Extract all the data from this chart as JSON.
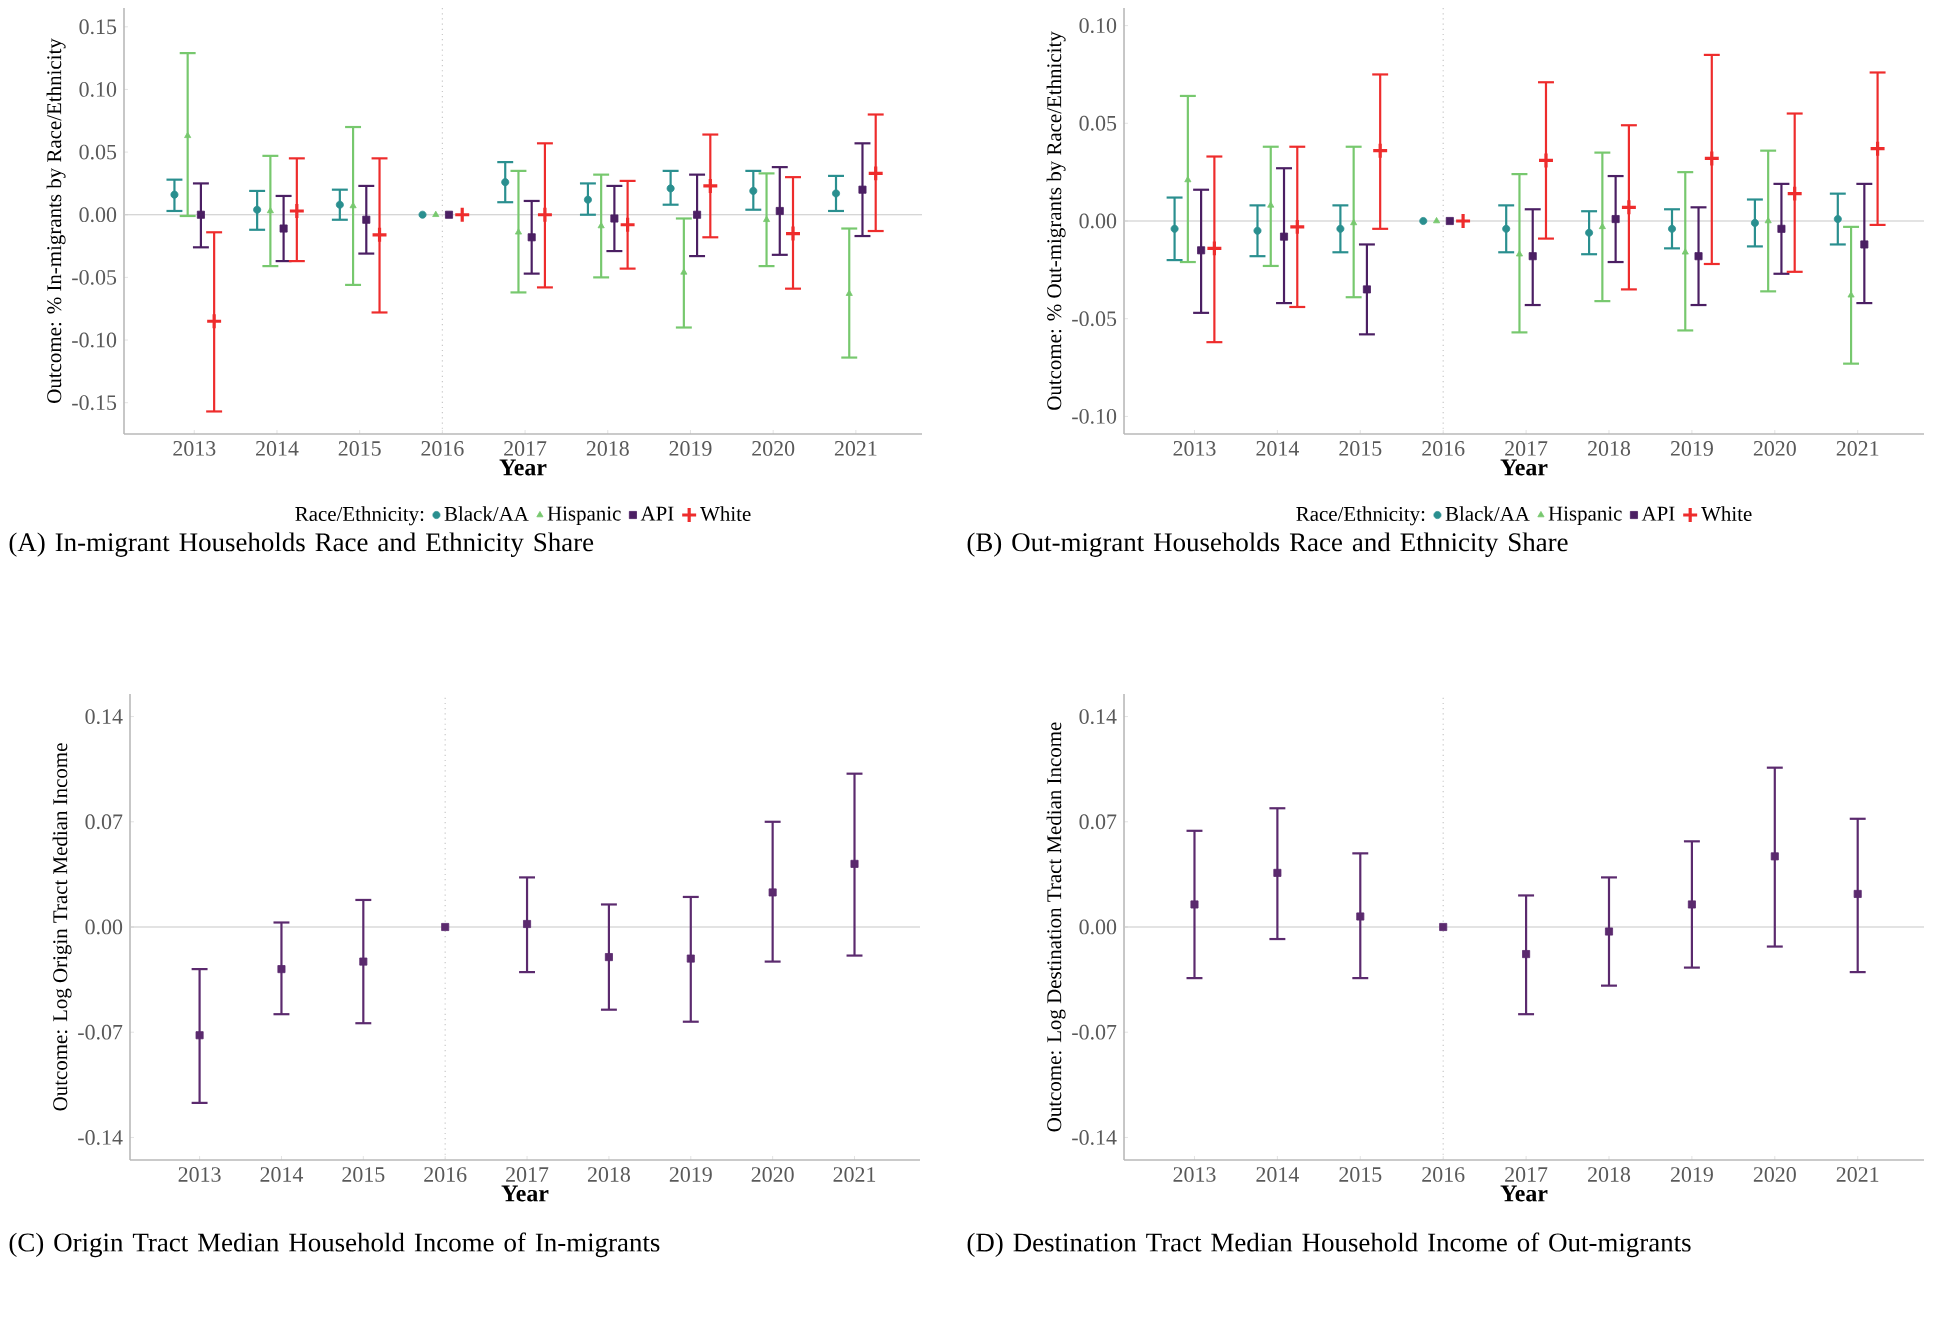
{
  "chart_data": [
    {
      "type": "scatter",
      "categories": [
        "2013",
        "2014",
        "2015",
        "2016",
        "2017",
        "2018",
        "2019",
        "2020",
        "2021"
      ],
      "xlabel": "Year",
      "ylabel": "Outcome: % In-migrants by Race/Ethnicity",
      "ylim": [
        -0.175,
        0.165
      ],
      "yticks": [
        {
          "value": -0.15,
          "label": "-0.15"
        },
        {
          "value": -0.1,
          "label": "-0.10"
        },
        {
          "value": -0.05,
          "label": "-0.05"
        },
        {
          "value": 0,
          "label": "0.00"
        },
        {
          "value": 0.05,
          "label": "0.05"
        },
        {
          "value": 0.1,
          "label": "0.10"
        },
        {
          "value": 0.15,
          "label": "0.15"
        }
      ],
      "legend": "bottom",
      "legend_title": "Race/Ethnicity:",
      "ref_lines": [
        {
          "axis": "y",
          "value": 0,
          "color": "#c8c8c8",
          "line_style": "solid"
        },
        {
          "axis": "x",
          "value": "2016",
          "color": "#c8c8c8",
          "line_style": "dotted"
        }
      ],
      "series": [
        {
          "name": "Black/AA",
          "color": "#2a8f8f",
          "marker": "circle",
          "values": [
            0.016,
            0.004,
            0.008,
            0,
            0.026,
            0.012,
            0.021,
            0.019,
            0.017
          ],
          "errors": [
            [
              0.003,
              0.028
            ],
            [
              -0.012,
              0.019
            ],
            [
              -0.004,
              0.02
            ],
            null,
            [
              0.01,
              0.042
            ],
            [
              0.0,
              0.025
            ],
            [
              0.008,
              0.035
            ],
            [
              0.004,
              0.035
            ],
            [
              0.003,
              0.031
            ]
          ]
        },
        {
          "name": "Hispanic",
          "color": "#77c86e",
          "marker": "triangle",
          "values": [
            0.063,
            0.003,
            0.007,
            0,
            -0.014,
            -0.009,
            -0.046,
            -0.004,
            -0.063
          ],
          "errors": [
            [
              -0.001,
              0.129
            ],
            [
              -0.041,
              0.047
            ],
            [
              -0.056,
              0.07
            ],
            null,
            [
              -0.062,
              0.035
            ],
            [
              -0.05,
              0.032
            ],
            [
              -0.09,
              -0.003
            ],
            [
              -0.041,
              0.033
            ],
            [
              -0.114,
              -0.011
            ]
          ]
        },
        {
          "name": "API",
          "color": "#4b1f63",
          "marker": "square",
          "values": [
            0,
            -0.011,
            -0.004,
            0,
            -0.018,
            -0.003,
            0,
            0.003,
            0.02
          ],
          "errors": [
            [
              -0.026,
              0.025
            ],
            [
              -0.037,
              0.015
            ],
            [
              -0.031,
              0.023
            ],
            null,
            [
              -0.047,
              0.011
            ],
            [
              -0.029,
              0.023
            ],
            [
              -0.033,
              0.032
            ],
            [
              -0.032,
              0.038
            ],
            [
              -0.017,
              0.057
            ]
          ]
        },
        {
          "name": "White",
          "color": "#ee2c2c",
          "marker": "cross",
          "values": [
            -0.085,
            0.003,
            -0.016,
            0,
            0,
            -0.008,
            0.023,
            -0.015,
            0.033
          ],
          "errors": [
            [
              -0.157,
              -0.014
            ],
            [
              -0.037,
              0.045
            ],
            [
              -0.078,
              0.045
            ],
            null,
            [
              -0.058,
              0.057
            ],
            [
              -0.043,
              0.027
            ],
            [
              -0.018,
              0.064
            ],
            [
              -0.059,
              0.03
            ],
            [
              -0.013,
              0.08
            ]
          ]
        }
      ],
      "annotations": [
        "(A) In-migrant Households Race and Ethnicity Share"
      ]
    },
    {
      "type": "scatter",
      "categories": [
        "2013",
        "2014",
        "2015",
        "2016",
        "2017",
        "2018",
        "2019",
        "2020",
        "2021"
      ],
      "xlabel": "Year",
      "ylabel": "Outcome: % Out-migrants by Race/Ethnicity",
      "ylim": [
        -0.109,
        0.109
      ],
      "yticks": [
        {
          "value": -0.1,
          "label": "-0.10"
        },
        {
          "value": -0.05,
          "label": "-0.05"
        },
        {
          "value": 0,
          "label": "0.00"
        },
        {
          "value": 0.05,
          "label": "0.05"
        },
        {
          "value": 0.1,
          "label": "0.10"
        }
      ],
      "legend": "bottom",
      "legend_title": "Race/Ethnicity:",
      "ref_lines": [
        {
          "axis": "y",
          "value": 0,
          "color": "#c8c8c8",
          "line_style": "solid"
        },
        {
          "axis": "x",
          "value": "2016",
          "color": "#c8c8c8",
          "line_style": "dotted"
        }
      ],
      "series": [
        {
          "name": "Black/AA",
          "color": "#2a8f8f",
          "marker": "circle",
          "values": [
            -0.004,
            -0.005,
            -0.004,
            0,
            -0.004,
            -0.006,
            -0.004,
            -0.001,
            0.001
          ],
          "errors": [
            [
              -0.02,
              0.012
            ],
            [
              -0.018,
              0.008
            ],
            [
              -0.016,
              0.008
            ],
            null,
            [
              -0.016,
              0.008
            ],
            [
              -0.017,
              0.005
            ],
            [
              -0.014,
              0.006
            ],
            [
              -0.013,
              0.011
            ],
            [
              -0.012,
              0.014
            ]
          ]
        },
        {
          "name": "Hispanic",
          "color": "#77c86e",
          "marker": "triangle",
          "values": [
            0.021,
            0.008,
            -0.001,
            0,
            -0.017,
            -0.003,
            -0.016,
            0,
            -0.038
          ],
          "errors": [
            [
              -0.021,
              0.064
            ],
            [
              -0.023,
              0.038
            ],
            [
              -0.039,
              0.038
            ],
            null,
            [
              -0.057,
              0.024
            ],
            [
              -0.041,
              0.035
            ],
            [
              -0.056,
              0.025
            ],
            [
              -0.036,
              0.036
            ],
            [
              -0.073,
              -0.003
            ]
          ]
        },
        {
          "name": "API",
          "color": "#4b1f63",
          "marker": "square",
          "values": [
            -0.015,
            -0.008,
            -0.035,
            0,
            -0.018,
            0.001,
            -0.018,
            -0.004,
            -0.012
          ],
          "errors": [
            [
              -0.047,
              0.016
            ],
            [
              -0.042,
              0.027
            ],
            [
              -0.058,
              -0.012
            ],
            null,
            [
              -0.043,
              0.006
            ],
            [
              -0.021,
              0.023
            ],
            [
              -0.043,
              0.007
            ],
            [
              -0.027,
              0.019
            ],
            [
              -0.042,
              0.019
            ]
          ]
        },
        {
          "name": "White",
          "color": "#ee2c2c",
          "marker": "cross",
          "values": [
            -0.014,
            -0.003,
            0.036,
            0,
            0.031,
            0.007,
            0.032,
            0.014,
            0.037
          ],
          "errors": [
            [
              -0.062,
              0.033
            ],
            [
              -0.044,
              0.038
            ],
            [
              -0.004,
              0.075
            ],
            null,
            [
              -0.009,
              0.071
            ],
            [
              -0.035,
              0.049
            ],
            [
              -0.022,
              0.085
            ],
            [
              -0.026,
              0.055
            ],
            [
              -0.002,
              0.076
            ]
          ]
        }
      ],
      "annotations": [
        "(B) Out-migrant Households Race and Ethnicity Share"
      ]
    },
    {
      "type": "scatter",
      "categories": [
        "2013",
        "2014",
        "2015",
        "2016",
        "2017",
        "2018",
        "2019",
        "2020",
        "2021"
      ],
      "xlabel": "Year",
      "ylabel": "Outcome: Log Origin Tract Median Income",
      "ylim": [
        -0.155,
        0.155
      ],
      "yticks": [
        {
          "value": -0.14,
          "label": "-0.14"
        },
        {
          "value": -0.07,
          "label": "-0.07"
        },
        {
          "value": 0,
          "label": "0.00"
        },
        {
          "value": 0.07,
          "label": "0.07"
        },
        {
          "value": 0.14,
          "label": "0.14"
        }
      ],
      "ref_lines": [
        {
          "axis": "y",
          "value": 0,
          "color": "#c8c8c8",
          "line_style": "solid"
        },
        {
          "axis": "x",
          "value": "2016",
          "color": "#c8c8c8",
          "line_style": "dotted"
        }
      ],
      "series": [
        {
          "color": "#5b2a6e",
          "marker": "square",
          "values": [
            -0.072,
            -0.028,
            -0.023,
            0,
            0.002,
            -0.02,
            -0.021,
            0.023,
            0.042
          ],
          "errors": [
            [
              -0.117,
              -0.028
            ],
            [
              -0.058,
              0.003
            ],
            [
              -0.064,
              0.018
            ],
            null,
            [
              -0.03,
              0.033
            ],
            [
              -0.055,
              0.015
            ],
            [
              -0.063,
              0.02
            ],
            [
              -0.023,
              0.07
            ],
            [
              -0.019,
              0.102
            ]
          ]
        }
      ],
      "annotations": [
        "(C) Origin Tract Median Household Income of In-migrants"
      ]
    },
    {
      "type": "scatter",
      "categories": [
        "2013",
        "2014",
        "2015",
        "2016",
        "2017",
        "2018",
        "2019",
        "2020",
        "2021"
      ],
      "xlabel": "Year",
      "ylabel": "Outcome: Log Destination Tract Median Income",
      "ylim": [
        -0.155,
        0.155
      ],
      "yticks": [
        {
          "value": -0.14,
          "label": "-0.14"
        },
        {
          "value": -0.07,
          "label": "-0.07"
        },
        {
          "value": 0,
          "label": "0.00"
        },
        {
          "value": 0.07,
          "label": "0.07"
        },
        {
          "value": 0.14,
          "label": "0.14"
        }
      ],
      "ref_lines": [
        {
          "axis": "y",
          "value": 0,
          "color": "#c8c8c8",
          "line_style": "solid"
        },
        {
          "axis": "x",
          "value": "2016",
          "color": "#c8c8c8",
          "line_style": "dotted"
        }
      ],
      "series": [
        {
          "color": "#5b2a6e",
          "marker": "square",
          "values": [
            0.015,
            0.036,
            0.007,
            0,
            -0.018,
            -0.003,
            0.015,
            0.047,
            0.022
          ],
          "errors": [
            [
              -0.034,
              0.064
            ],
            [
              -0.008,
              0.079
            ],
            [
              -0.034,
              0.049
            ],
            null,
            [
              -0.058,
              0.021
            ],
            [
              -0.039,
              0.033
            ],
            [
              -0.027,
              0.057
            ],
            [
              -0.013,
              0.106
            ],
            [
              -0.03,
              0.072
            ]
          ]
        }
      ],
      "annotations": [
        "(D) Destination Tract Median Household Income of Out-migrants"
      ]
    }
  ]
}
